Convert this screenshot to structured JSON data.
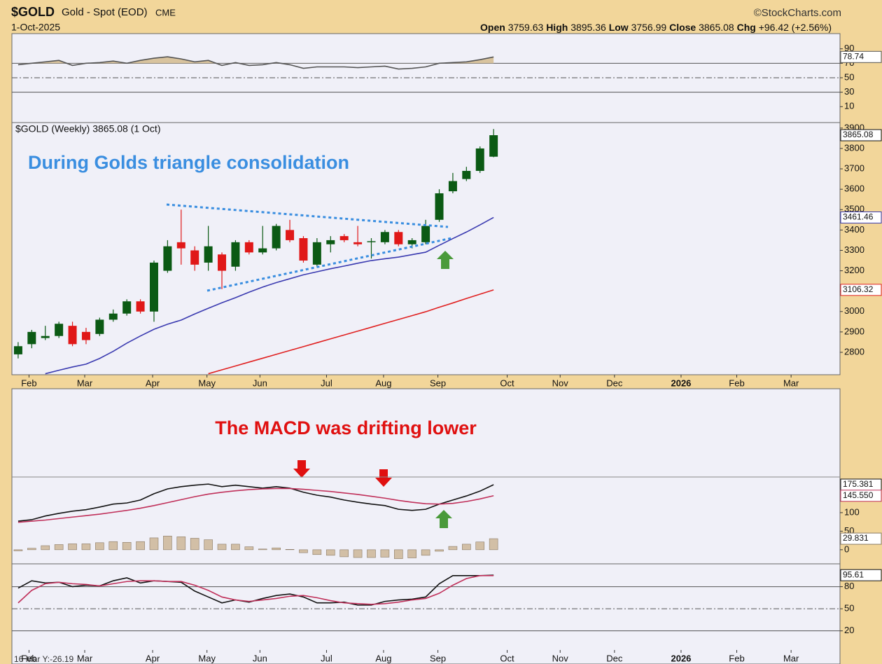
{
  "header": {
    "symbol": "$GOLD",
    "name": "Gold - Spot (EOD)",
    "exchange": "CME",
    "date": "1-Oct-2025",
    "credit": "©StockCharts.com",
    "open_label": "Open",
    "open": "3759.63",
    "high_label": "High",
    "high": "3895.36",
    "low_label": "Low",
    "low": "3756.99",
    "close_label": "Close",
    "close": "3865.08",
    "chg_label": "Chg",
    "chg": "+96.42 (+2.56%)",
    "readout": "16 Mar Y:-26.19"
  },
  "chart_data": [
    {
      "type": "line",
      "ylim": [
        -12,
        111
      ],
      "yticks": [
        10,
        30,
        50,
        70,
        90
      ],
      "hlines": [
        {
          "value": 70,
          "style": "solid"
        },
        {
          "value": 50,
          "style": "dashdot"
        },
        {
          "value": 30,
          "style": "solid"
        }
      ],
      "series": [
        {
          "color": "#555555",
          "fill": "#d8c39e",
          "fill_to": 70,
          "last_label": "78.74",
          "values": [
            68,
            70,
            72,
            74,
            67,
            70,
            71,
            73,
            70,
            74,
            77,
            79,
            76,
            72,
            74,
            67,
            71,
            67,
            68,
            71,
            68,
            63,
            65,
            65,
            65,
            64,
            65,
            66,
            62,
            63,
            65,
            70,
            71,
            72,
            75,
            78.74
          ]
        }
      ]
    },
    {
      "type": "candlestick",
      "title": "$GOLD (Weekly) 3865.08 (1 Oct)",
      "annotation": "During Golds triangle consolidation",
      "categories": [
        null,
        null,
        null,
        null,
        null,
        null,
        null,
        null,
        null,
        null,
        null,
        null,
        null,
        null,
        null,
        null,
        null,
        null,
        null,
        null,
        null,
        null,
        null,
        null,
        null,
        null,
        null,
        null,
        null,
        null,
        null,
        null,
        null,
        null,
        null,
        null
      ],
      "open": [
        2790,
        2840,
        2870,
        2880,
        2930,
        2900,
        2890,
        2960,
        2990,
        3050,
        3000,
        3200,
        3340,
        3300,
        3240,
        3280,
        3220,
        3340,
        3290,
        3310,
        3400,
        3360,
        3230,
        3330,
        3370,
        3340,
        3340,
        3340,
        3390,
        3330,
        3340,
        3450,
        3590,
        3650,
        3690,
        3759.63
      ],
      "high": [
        2850,
        2910,
        2930,
        2950,
        2950,
        2920,
        2970,
        3010,
        3060,
        3060,
        3250,
        3350,
        3500,
        3320,
        3420,
        3290,
        3350,
        3350,
        3420,
        3430,
        3450,
        3370,
        3360,
        3370,
        3380,
        3420,
        3360,
        3400,
        3400,
        3360,
        3450,
        3600,
        3680,
        3710,
        3810,
        3895.36
      ],
      "low": [
        2770,
        2820,
        2860,
        2870,
        2830,
        2840,
        2880,
        2950,
        2980,
        2990,
        2950,
        3190,
        3230,
        3200,
        3200,
        3110,
        3200,
        3280,
        3280,
        3300,
        3340,
        3240,
        3220,
        3290,
        3340,
        3320,
        3260,
        3330,
        3320,
        3310,
        3330,
        3440,
        3580,
        3640,
        3680,
        3756.99
      ],
      "close": [
        2830,
        2900,
        2880,
        2940,
        2840,
        2860,
        2960,
        2990,
        3050,
        3000,
        3240,
        3320,
        3310,
        3230,
        3320,
        3200,
        3340,
        3290,
        3310,
        3420,
        3350,
        3250,
        3340,
        3350,
        3350,
        3330,
        3345,
        3390,
        3330,
        3350,
        3420,
        3580,
        3640,
        3690,
        3800,
        3865.08
      ],
      "close_label": "3865.08",
      "up_color": "#0b5a14",
      "down_color": "#e01818",
      "overlays": [
        {
          "color": "#3a3ab0",
          "last_label": "3461.46",
          "values": [
            null,
            null,
            2695,
            2712,
            2728,
            2742,
            2770,
            2805,
            2845,
            2880,
            2913,
            2938,
            2958,
            2988,
            3016,
            3043,
            3068,
            3095,
            3120,
            3142,
            3161,
            3180,
            3195,
            3210,
            3223,
            3237,
            3250,
            3259,
            3267,
            3279,
            3291,
            3325,
            3358,
            3390,
            3425,
            3461.46
          ]
        },
        {
          "color": "#e02020",
          "last_label": "3106.32",
          "values": [
            null,
            null,
            null,
            null,
            null,
            null,
            null,
            null,
            null,
            null,
            null,
            null,
            null,
            null,
            2695,
            2714,
            2733,
            2752,
            2771,
            2790,
            2809,
            2828,
            2847,
            2866,
            2885,
            2904,
            2923,
            2942,
            2961,
            2980,
            2999,
            3021,
            3042,
            3064,
            3085,
            3106.32
          ]
        }
      ],
      "ylim": [
        2690,
        3927
      ],
      "yticks": [
        2800,
        2900,
        3000,
        3100,
        3200,
        3300,
        3400,
        3500,
        3600,
        3700,
        3800,
        3900
      ],
      "xlim": [
        -0.46,
        60.5
      ],
      "xticks": [
        {
          "value": 0.8,
          "label": "Feb"
        },
        {
          "value": 4.9,
          "label": "Mar"
        },
        {
          "value": 9.9,
          "label": "Apr"
        },
        {
          "value": 13.9,
          "label": "May"
        },
        {
          "value": 17.8,
          "label": "Jun"
        },
        {
          "value": 22.7,
          "label": "Jul"
        },
        {
          "value": 26.9,
          "label": "Aug"
        },
        {
          "value": 30.9,
          "label": "Sep"
        },
        {
          "value": 36,
          "label": "Oct"
        },
        {
          "value": 39.9,
          "label": "Nov"
        },
        {
          "value": 43.9,
          "label": "Dec"
        },
        {
          "value": 48.8,
          "label": "2026"
        },
        {
          "value": 52.9,
          "label": "Feb"
        },
        {
          "value": 56.9,
          "label": "Mar"
        }
      ]
    },
    {
      "type": "macd",
      "annotation": "The MACD was drifting lower",
      "ylim": [
        -38,
        434
      ],
      "yticks": [
        0,
        50,
        100
      ],
      "series": [
        {
          "color": "#111111",
          "last_label": "175.381",
          "values": [
            77,
            81,
            91,
            98,
            104,
            108,
            115,
            123,
            126,
            134,
            151,
            164,
            170,
            174,
            177,
            170,
            174,
            170,
            166,
            170,
            166,
            155,
            147,
            142,
            134,
            128,
            123,
            119,
            109,
            106,
            109,
            123,
            134,
            145,
            158,
            175.381
          ]
        },
        {
          "color": "#c0305a",
          "last_label": "145.550",
          "values": [
            74,
            77,
            80,
            84,
            88,
            92,
            96,
            101,
            106,
            112,
            119,
            127,
            135,
            143,
            150,
            155,
            159,
            162,
            164,
            165,
            165,
            163,
            160,
            157,
            153,
            149,
            144,
            139,
            133,
            128,
            124,
            123,
            125,
            130,
            137,
            145.55
          ]
        }
      ],
      "histogram": {
        "color": "#d2bfa6",
        "last_label": "29.831",
        "values": [
          -3,
          4,
          11,
          14,
          16,
          16,
          19,
          22,
          20,
          22,
          32,
          37,
          35,
          31,
          27,
          15,
          15,
          8,
          2,
          5,
          1,
          -8,
          -13,
          -15,
          -19,
          -21,
          -21,
          -20,
          -24,
          -22,
          -15,
          -4,
          9,
          15,
          21,
          29.831
        ]
      }
    },
    {
      "type": "line",
      "ylim": [
        -25,
        111
      ],
      "yticks": [
        20,
        50,
        80
      ],
      "hlines": [
        {
          "value": 80,
          "style": "solid"
        },
        {
          "value": 50,
          "style": "dashdot"
        },
        {
          "value": 20,
          "style": "solid"
        }
      ],
      "series": [
        {
          "color": "#111111",
          "last_label": "95.61",
          "values": [
            78,
            88,
            85,
            86,
            80,
            82,
            81,
            88,
            92,
            85,
            88,
            87,
            86,
            74,
            66,
            58,
            62,
            59,
            64,
            68,
            70,
            66,
            58,
            58,
            59,
            55,
            55,
            60,
            62,
            63,
            66,
            84,
            95,
            95,
            95,
            95.61
          ]
        },
        {
          "color": "#c0305a",
          "values": [
            58,
            75,
            84,
            86,
            84,
            83,
            81,
            84,
            87,
            88,
            88,
            87,
            87,
            82,
            75,
            66,
            62,
            60,
            62,
            64,
            67,
            68,
            65,
            61,
            58,
            57,
            56,
            57,
            59,
            62,
            64,
            71,
            82,
            91,
            95,
            95
          ]
        }
      ]
    }
  ]
}
